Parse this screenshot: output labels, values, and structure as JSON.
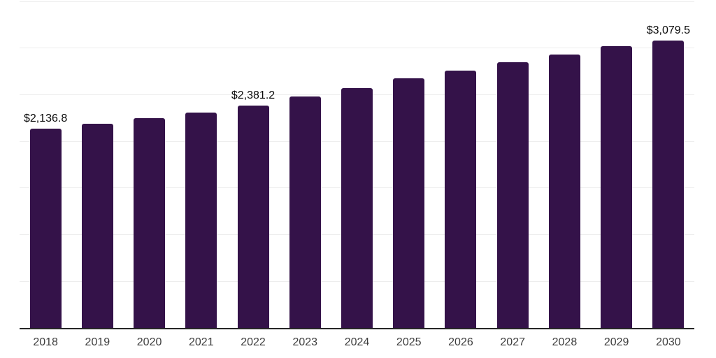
{
  "chart_data": {
    "type": "bar",
    "title": "",
    "xlabel": "",
    "ylabel": "",
    "categories": [
      "2018",
      "2019",
      "2020",
      "2021",
      "2022",
      "2023",
      "2024",
      "2025",
      "2026",
      "2027",
      "2028",
      "2029",
      "2030"
    ],
    "values": [
      2136.8,
      2190.1,
      2249.4,
      2311.6,
      2381.2,
      2478.5,
      2574.3,
      2677.0,
      2755.0,
      2846.0,
      2932.0,
      3018.0,
      3079.5
    ],
    "bar_value_labels": [
      "$2,136.8",
      "",
      "",
      "",
      "$2,381.2",
      "",
      "",
      "",
      "",
      "",
      "",
      "",
      "$3,079.5"
    ],
    "ylim": [
      0,
      3500
    ],
    "grid_step": 500,
    "grid": "horizontal-only",
    "legend_position": "none",
    "colors": {
      "bar": "#341249",
      "axis": "#262626",
      "gridline": "#ededed",
      "tick_label": "#3d3d3d",
      "value_label": "#0a0a0a",
      "background": "#ffffff"
    }
  }
}
